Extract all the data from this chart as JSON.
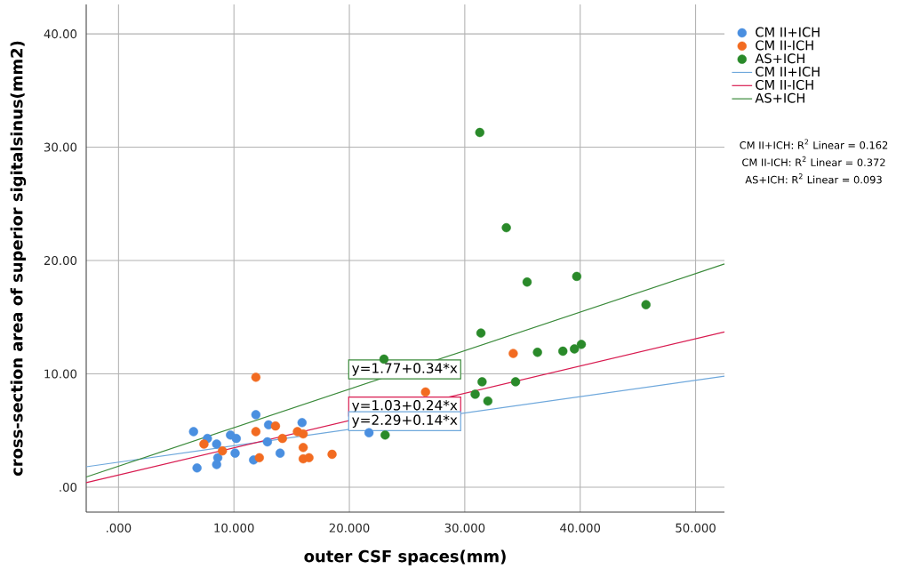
{
  "chart_data": {
    "type": "scatter",
    "xlabel": "outer CSF spaces(mm)",
    "ylabel": "cross-section area of superior sigitalsinus(mm2)",
    "xlim": [
      -2.8,
      52.5
    ],
    "ylim": [
      -2.2,
      42.6
    ],
    "xticks": [
      {
        "value": 0,
        "label": ".000"
      },
      {
        "value": 10,
        "label": "10.000"
      },
      {
        "value": 20,
        "label": "20.000"
      },
      {
        "value": 30,
        "label": "30.000"
      },
      {
        "value": 40,
        "label": "40.000"
      },
      {
        "value": 50,
        "label": "50.000"
      }
    ],
    "yticks": [
      {
        "value": 0,
        "label": ".00"
      },
      {
        "value": 10,
        "label": "10.00"
      },
      {
        "value": 20,
        "label": "20.00"
      },
      {
        "value": 30,
        "label": "30.00"
      },
      {
        "value": 40,
        "label": "40.00"
      }
    ],
    "grid": true,
    "legend": "right",
    "series": [
      {
        "name": "CM II+ICH",
        "color": "#4a8fe0",
        "marker": "circle",
        "x": [
          6.5,
          6.8,
          7.7,
          8.5,
          8.6,
          8.5,
          9.7,
          10.2,
          10.1,
          11.9,
          11.7,
          13.0,
          12.9,
          14.0,
          15.9,
          21.7
        ],
        "values": [
          4.9,
          1.7,
          4.3,
          3.8,
          2.6,
          2.0,
          4.6,
          4.3,
          3.0,
          6.4,
          2.4,
          5.5,
          4.0,
          3.0,
          5.7,
          4.8
        ]
      },
      {
        "name": "CM II-ICH",
        "color": "#f26b21",
        "marker": "circle",
        "x": [
          7.4,
          9.0,
          11.9,
          11.9,
          12.2,
          13.6,
          14.2,
          15.5,
          16.0,
          16.0,
          16.0,
          16.5,
          18.5,
          26.6,
          34.2
        ],
        "values": [
          3.8,
          3.2,
          9.7,
          4.9,
          2.6,
          5.4,
          4.3,
          4.9,
          4.7,
          3.5,
          2.5,
          2.6,
          2.9,
          8.4,
          11.8
        ]
      },
      {
        "name": "AS+ICH",
        "color": "#2a8a2a",
        "marker": "circle",
        "x": [
          23.0,
          23.1,
          30.9,
          31.3,
          31.4,
          31.5,
          32.0,
          33.6,
          34.4,
          35.4,
          36.3,
          38.5,
          39.5,
          39.7,
          40.1,
          45.7
        ],
        "values": [
          11.3,
          4.6,
          8.2,
          31.3,
          13.6,
          9.3,
          7.6,
          22.9,
          9.3,
          18.1,
          11.9,
          12.0,
          12.2,
          18.6,
          12.6,
          16.1
        ]
      },
      {
        "name": "CM II+ICH",
        "type": "line",
        "color": "#6fa8dc",
        "x": [
          -2.8,
          52.5
        ],
        "values": [
          1.8,
          9.8
        ]
      },
      {
        "name": "CM II-ICH",
        "type": "line",
        "color": "#d81b50",
        "x": [
          -2.8,
          52.5
        ],
        "values": [
          0.4,
          13.7
        ]
      },
      {
        "name": "AS+ICH",
        "type": "line",
        "color": "#3a8a3a",
        "x": [
          -2.8,
          52.5
        ],
        "values": [
          0.9,
          19.7
        ]
      }
    ],
    "annotations": [
      "y=1.77+0.34*x",
      "y=1.03+0.24*x",
      "y=2.29+0.14*x",
      "CM II+ICH: R$^{2}$ Linear = 0.162",
      "CM II-ICH: R$^{2}$ Linear = 0.372",
      "AS+ICH: R$^{2}$ Linear = 0.093"
    ]
  }
}
